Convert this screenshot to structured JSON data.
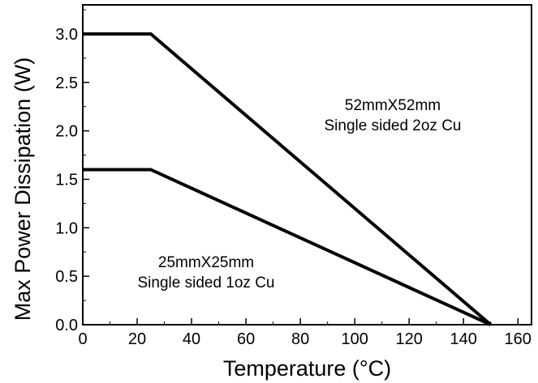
{
  "chart_data": {
    "type": "line",
    "title": "",
    "xlabel": "Temperature (°C)",
    "ylabel": "Max Power Dissipation (W)",
    "xlim": [
      0,
      165
    ],
    "ylim": [
      0,
      3.3
    ],
    "xticks": [
      0,
      20,
      40,
      60,
      80,
      100,
      120,
      140,
      160
    ],
    "yticks": [
      0.0,
      0.5,
      1.0,
      1.5,
      2.0,
      2.5,
      3.0
    ],
    "xtick_labels": [
      "0",
      "20",
      "40",
      "60",
      "80",
      "100",
      "120",
      "140",
      "160"
    ],
    "ytick_labels": [
      "0.0",
      "0.5",
      "1.0",
      "1.5",
      "2.0",
      "2.5",
      "3.0"
    ],
    "grid": false,
    "legend": "none",
    "series": [
      {
        "annotation": [
          "52mmX52mm",
          "Single sided 2oz Cu"
        ],
        "color": "#000000",
        "x": [
          0,
          25,
          150
        ],
        "y": [
          3.0,
          3.0,
          0.0
        ]
      },
      {
        "annotation": [
          "25mmX25mm",
          "Single sided 1oz Cu"
        ],
        "color": "#000000",
        "x": [
          0,
          25,
          150
        ],
        "y": [
          1.6,
          1.6,
          0.0
        ]
      }
    ]
  }
}
